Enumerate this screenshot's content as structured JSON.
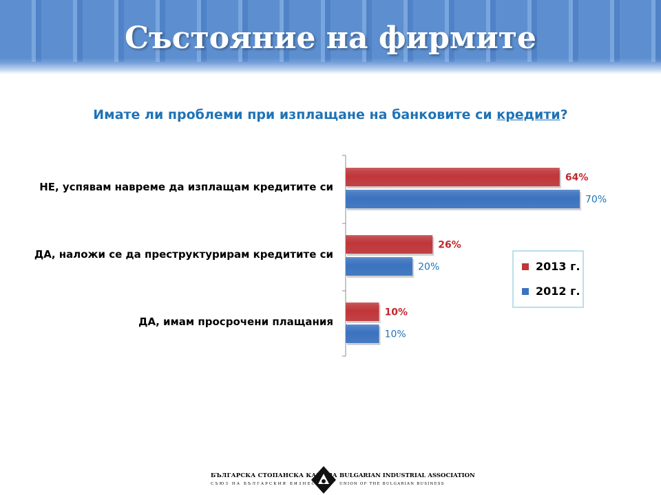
{
  "slide": {
    "title": "Състояние на фирмите",
    "question_pre": "Имате ли проблеми при изплащане на банковите си ",
    "question_underlined": "кредити",
    "question_post": "?"
  },
  "legend": {
    "items": [
      {
        "label": "2013 г.",
        "color": "#c0363a"
      },
      {
        "label": "2012 г.",
        "color": "#3b73c0"
      }
    ]
  },
  "chart_data": {
    "type": "bar",
    "orientation": "horizontal",
    "categories": [
      "НЕ, успявам навреме да изплащам кредитите си",
      "ДА, наложи се да преструктурирам кредитите си",
      "ДА, имам просрочени плащания"
    ],
    "series": [
      {
        "name": "2013 г.",
        "values": [
          64,
          26,
          10
        ],
        "labels": [
          "64%",
          "26%",
          "10%"
        ],
        "color": "#c0363a"
      },
      {
        "name": "2012 г.",
        "values": [
          70,
          20,
          10
        ],
        "labels": [
          "70%",
          "20%",
          "10%"
        ],
        "color": "#3b73c0"
      }
    ],
    "xlim": [
      0,
      70
    ],
    "grid": false,
    "legend_position": "right"
  },
  "footer": {
    "org_bg_name": "БЪЛГАРСКА СТОПАНСКА КАМАРА",
    "org_bg_sub": "СЪЮЗ НА БЪЛГАРСКИЯ БИЗНЕС",
    "org_en_name": "BULGARIAN INDUSTRIAL ASSOCIATION",
    "org_en_sub": "UNION OF THE BULGARIAN BUSINESS"
  }
}
